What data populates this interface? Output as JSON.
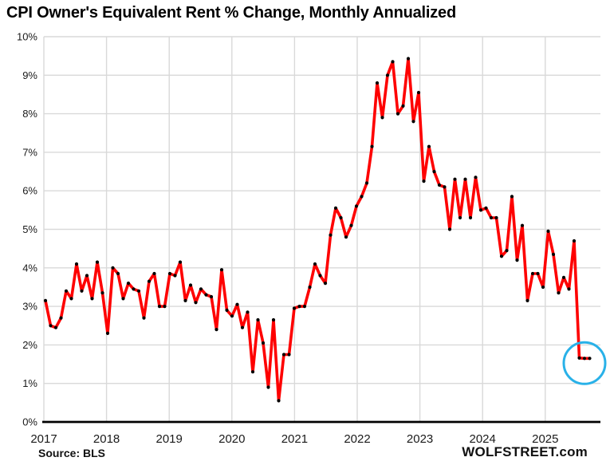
{
  "title": "CPI Owner's Equivalent Rent % Change, Monthly Annualized",
  "source_label": "Source: BLS",
  "watermark": "WOLFSTREET.com",
  "colors": {
    "line": "#fe0000",
    "marker": "#000000",
    "grid": "#d9d9d9",
    "axis": "#000000",
    "highlight_ellipse": "#29b1e8",
    "text": "#1a1a1a"
  },
  "chart_data": {
    "type": "line",
    "title": "CPI Owner's Equivalent Rent % Change, Monthly Annualized",
    "xlabel": "",
    "ylabel": "",
    "ylim": [
      0,
      10
    ],
    "grid": "both",
    "legend_position": "none",
    "frequency": "monthly",
    "start_month": "2017-01",
    "x_tick_labels": [
      "2017",
      "2018",
      "2019",
      "2020",
      "2021",
      "2022",
      "2023",
      "2024",
      "2025"
    ],
    "y_tick_labels": [
      "0%",
      "1%",
      "2%",
      "3%",
      "4%",
      "5%",
      "6%",
      "7%",
      "8%",
      "9%",
      "10%"
    ],
    "y_tick_values": [
      0,
      1,
      2,
      3,
      4,
      5,
      6,
      7,
      8,
      9,
      10
    ],
    "series": [
      {
        "name": "OER % change monthly annualized",
        "values": [
          3.15,
          2.5,
          2.45,
          2.7,
          3.4,
          3.2,
          4.1,
          3.4,
          3.8,
          3.2,
          4.15,
          3.35,
          2.3,
          4.0,
          3.85,
          3.2,
          3.6,
          3.45,
          3.4,
          2.7,
          3.65,
          3.85,
          3.0,
          3.0,
          3.85,
          3.8,
          4.15,
          3.15,
          3.55,
          3.1,
          3.45,
          3.3,
          3.25,
          2.4,
          3.95,
          2.9,
          2.75,
          3.05,
          2.45,
          2.85,
          1.3,
          2.65,
          2.05,
          0.9,
          2.65,
          0.55,
          1.75,
          1.75,
          2.95,
          3.0,
          3.0,
          3.5,
          4.1,
          3.8,
          3.6,
          4.85,
          5.55,
          5.3,
          4.8,
          5.1,
          5.6,
          5.85,
          6.2,
          7.15,
          8.8,
          7.9,
          9.0,
          9.35,
          8.0,
          8.2,
          9.43,
          7.8,
          8.55,
          6.25,
          7.15,
          6.5,
          6.15,
          6.1,
          5.0,
          6.3,
          5.3,
          6.3,
          5.3,
          6.35,
          5.5,
          5.55,
          5.3,
          5.3,
          4.3,
          4.45,
          5.85,
          4.2,
          5.1,
          3.15,
          3.85,
          3.85,
          3.5,
          4.95,
          4.35,
          3.35,
          3.75,
          3.45,
          4.7,
          1.66,
          1.65,
          1.65
        ]
      }
    ],
    "annotation": {
      "shape": "ellipse",
      "target": "last-three-points",
      "circled_value": 1.65,
      "color": "#29b1e8"
    }
  }
}
